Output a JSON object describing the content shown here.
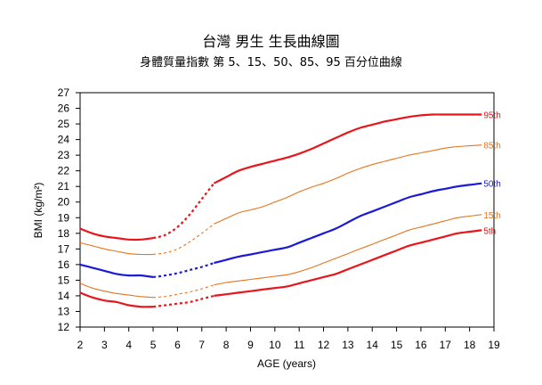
{
  "chart_data": {
    "type": "line",
    "title": "台灣 男生 生長曲線圖",
    "subtitle": "身體質量指數 第 5、15、50、85、95 百分位曲線",
    "xlabel": "AGE (years)",
    "ylabel": "BMI (kg/m²)",
    "xlim": [
      2,
      19
    ],
    "ylim": [
      12,
      27
    ],
    "x_ticks": [
      "2",
      "3",
      "4",
      "5",
      "6",
      "7",
      "8",
      "9",
      "10",
      "11",
      "12",
      "13",
      "14",
      "15",
      "16",
      "17",
      "18",
      "19"
    ],
    "y_ticks": [
      "12",
      "13",
      "14",
      "15",
      "16",
      "17",
      "18",
      "19",
      "20",
      "21",
      "22",
      "23",
      "24",
      "25",
      "26",
      "27"
    ],
    "grid": false,
    "series": [
      {
        "name": "95th",
        "color": "#e8151b",
        "width": 2.2,
        "solid_early": [
          [
            2,
            18.3
          ],
          [
            2.5,
            18.0
          ],
          [
            3,
            17.8
          ],
          [
            3.5,
            17.7
          ],
          [
            4,
            17.6
          ],
          [
            4.5,
            17.6
          ],
          [
            5,
            17.7
          ]
        ],
        "dashed": [
          [
            5,
            17.7
          ],
          [
            5.5,
            17.9
          ],
          [
            6,
            18.4
          ],
          [
            6.5,
            19.2
          ],
          [
            7,
            20.2
          ],
          [
            7.5,
            21.2
          ]
        ],
        "solid_late": [
          [
            7.5,
            21.2
          ],
          [
            8,
            21.6
          ],
          [
            8.5,
            22.0
          ],
          [
            9,
            22.25
          ],
          [
            9.5,
            22.45
          ],
          [
            10,
            22.65
          ],
          [
            10.5,
            22.85
          ],
          [
            11,
            23.1
          ],
          [
            11.5,
            23.4
          ],
          [
            12,
            23.75
          ],
          [
            12.5,
            24.1
          ],
          [
            13,
            24.45
          ],
          [
            13.5,
            24.75
          ],
          [
            14,
            24.95
          ],
          [
            14.5,
            25.15
          ],
          [
            15,
            25.3
          ],
          [
            15.5,
            25.45
          ],
          [
            16,
            25.55
          ],
          [
            16.5,
            25.6
          ],
          [
            17,
            25.6
          ],
          [
            17.5,
            25.6
          ],
          [
            18,
            25.6
          ],
          [
            18.5,
            25.6
          ]
        ]
      },
      {
        "name": "85th",
        "color": "#e8741b",
        "width": 1.1,
        "solid_early": [
          [
            2,
            17.4
          ],
          [
            2.5,
            17.2
          ],
          [
            3,
            17.0
          ],
          [
            3.5,
            16.85
          ],
          [
            4,
            16.7
          ],
          [
            4.5,
            16.65
          ],
          [
            5,
            16.65
          ]
        ],
        "dashed": [
          [
            5,
            16.65
          ],
          [
            5.5,
            16.75
          ],
          [
            6,
            17.0
          ],
          [
            6.5,
            17.45
          ],
          [
            7,
            18.0
          ],
          [
            7.5,
            18.6
          ]
        ],
        "solid_late": [
          [
            7.5,
            18.6
          ],
          [
            8,
            18.95
          ],
          [
            8.5,
            19.3
          ],
          [
            9,
            19.5
          ],
          [
            9.5,
            19.7
          ],
          [
            10,
            20.0
          ],
          [
            10.5,
            20.3
          ],
          [
            11,
            20.65
          ],
          [
            11.5,
            20.95
          ],
          [
            12,
            21.2
          ],
          [
            12.5,
            21.5
          ],
          [
            13,
            21.85
          ],
          [
            13.5,
            22.15
          ],
          [
            14,
            22.4
          ],
          [
            14.5,
            22.6
          ],
          [
            15,
            22.8
          ],
          [
            15.5,
            23.0
          ],
          [
            16,
            23.15
          ],
          [
            16.5,
            23.3
          ],
          [
            17,
            23.45
          ],
          [
            17.5,
            23.55
          ],
          [
            18,
            23.6
          ],
          [
            18.5,
            23.65
          ]
        ]
      },
      {
        "name": "50th",
        "color": "#1a1ad8",
        "width": 2.2,
        "solid_early": [
          [
            2,
            16.0
          ],
          [
            2.5,
            15.8
          ],
          [
            3,
            15.6
          ],
          [
            3.5,
            15.4
          ],
          [
            4,
            15.3
          ],
          [
            4.5,
            15.3
          ],
          [
            5,
            15.2
          ]
        ],
        "dashed": [
          [
            5,
            15.2
          ],
          [
            5.5,
            15.3
          ],
          [
            6,
            15.45
          ],
          [
            6.5,
            15.65
          ],
          [
            7,
            15.85
          ],
          [
            7.5,
            16.1
          ]
        ],
        "solid_late": [
          [
            7.5,
            16.1
          ],
          [
            8,
            16.3
          ],
          [
            8.5,
            16.5
          ],
          [
            9,
            16.65
          ],
          [
            9.5,
            16.8
          ],
          [
            10,
            16.95
          ],
          [
            10.5,
            17.1
          ],
          [
            11,
            17.4
          ],
          [
            11.5,
            17.7
          ],
          [
            12,
            18.0
          ],
          [
            12.5,
            18.3
          ],
          [
            13,
            18.7
          ],
          [
            13.5,
            19.1
          ],
          [
            14,
            19.4
          ],
          [
            14.5,
            19.7
          ],
          [
            15,
            20.0
          ],
          [
            15.5,
            20.3
          ],
          [
            16,
            20.5
          ],
          [
            16.5,
            20.7
          ],
          [
            17,
            20.85
          ],
          [
            17.5,
            21.0
          ],
          [
            18,
            21.1
          ],
          [
            18.5,
            21.2
          ]
        ]
      },
      {
        "name": "15th",
        "color": "#e8741b",
        "width": 1.1,
        "solid_early": [
          [
            2,
            14.8
          ],
          [
            2.5,
            14.5
          ],
          [
            3,
            14.3
          ],
          [
            3.5,
            14.15
          ],
          [
            4,
            14.05
          ],
          [
            4.5,
            13.95
          ],
          [
            5,
            13.9
          ]
        ],
        "dashed": [
          [
            5,
            13.9
          ],
          [
            5.5,
            13.95
          ],
          [
            6,
            14.1
          ],
          [
            6.5,
            14.25
          ],
          [
            7,
            14.45
          ],
          [
            7.5,
            14.7
          ]
        ],
        "solid_late": [
          [
            7.5,
            14.7
          ],
          [
            8,
            14.85
          ],
          [
            8.5,
            14.95
          ],
          [
            9,
            15.05
          ],
          [
            9.5,
            15.15
          ],
          [
            10,
            15.25
          ],
          [
            10.5,
            15.35
          ],
          [
            11,
            15.55
          ],
          [
            11.5,
            15.8
          ],
          [
            12,
            16.1
          ],
          [
            12.5,
            16.4
          ],
          [
            13,
            16.7
          ],
          [
            13.5,
            17.0
          ],
          [
            14,
            17.3
          ],
          [
            14.5,
            17.6
          ],
          [
            15,
            17.9
          ],
          [
            15.5,
            18.2
          ],
          [
            16,
            18.4
          ],
          [
            16.5,
            18.6
          ],
          [
            17,
            18.8
          ],
          [
            17.5,
            19.0
          ],
          [
            18,
            19.1
          ],
          [
            18.5,
            19.2
          ]
        ]
      },
      {
        "name": "5th",
        "color": "#e8151b",
        "width": 2.2,
        "solid_early": [
          [
            2,
            14.2
          ],
          [
            2.5,
            13.9
          ],
          [
            3,
            13.7
          ],
          [
            3.5,
            13.6
          ],
          [
            4,
            13.4
          ],
          [
            4.5,
            13.3
          ],
          [
            5,
            13.3
          ]
        ],
        "dashed": [
          [
            5,
            13.3
          ],
          [
            5.5,
            13.4
          ],
          [
            6,
            13.5
          ],
          [
            6.5,
            13.6
          ],
          [
            7,
            13.8
          ],
          [
            7.5,
            14.0
          ]
        ],
        "solid_late": [
          [
            7.5,
            14.0
          ],
          [
            8,
            14.1
          ],
          [
            8.5,
            14.2
          ],
          [
            9,
            14.3
          ],
          [
            9.5,
            14.4
          ],
          [
            10,
            14.5
          ],
          [
            10.5,
            14.6
          ],
          [
            11,
            14.8
          ],
          [
            11.5,
            15.0
          ],
          [
            12,
            15.2
          ],
          [
            12.5,
            15.4
          ],
          [
            13,
            15.7
          ],
          [
            13.5,
            16.0
          ],
          [
            14,
            16.3
          ],
          [
            14.5,
            16.6
          ],
          [
            15,
            16.9
          ],
          [
            15.5,
            17.2
          ],
          [
            16,
            17.4
          ],
          [
            16.5,
            17.6
          ],
          [
            17,
            17.8
          ],
          [
            17.5,
            18.0
          ],
          [
            18,
            18.1
          ],
          [
            18.5,
            18.2
          ]
        ]
      }
    ]
  }
}
